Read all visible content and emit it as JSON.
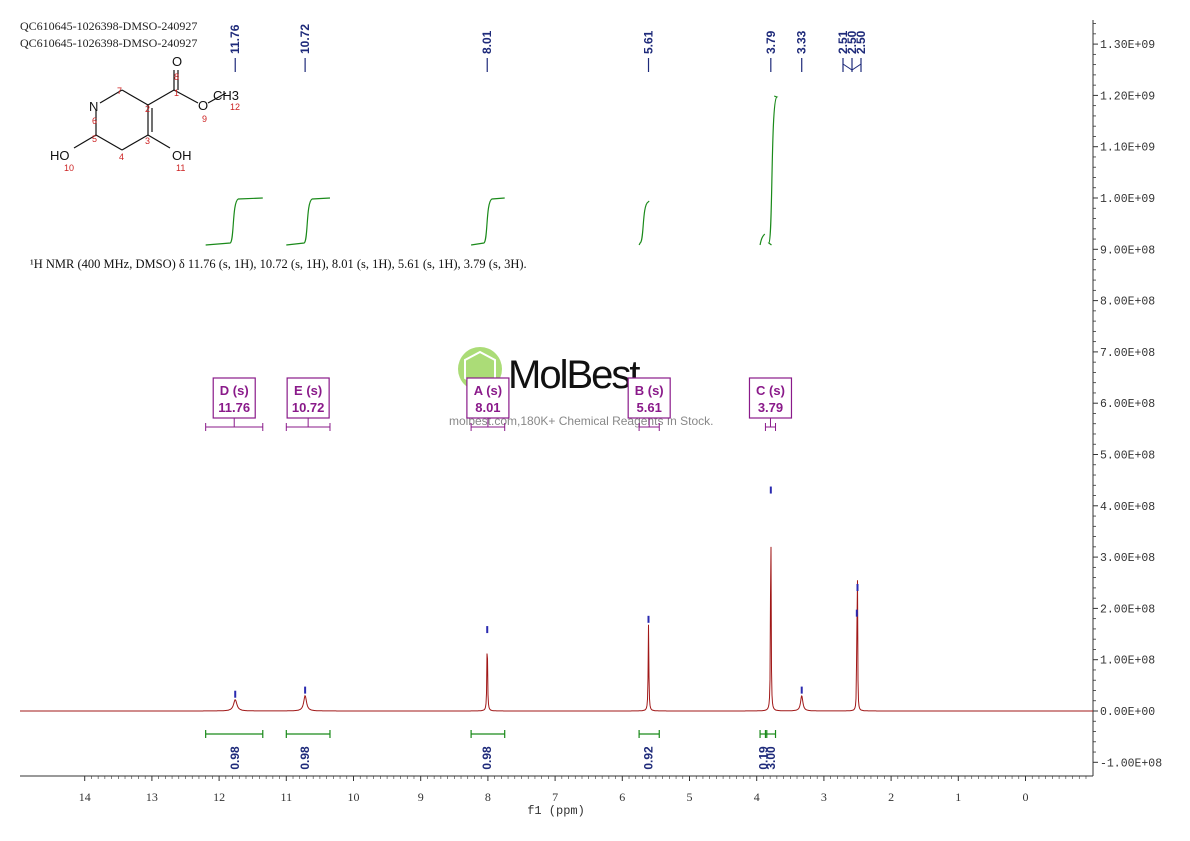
{
  "header": {
    "sample_line1": "QC610645-1026398-DMSO-240927",
    "sample_line2": "QC610645-1026398-DMSO-240927"
  },
  "nmr_description": "¹H NMR (400 MHz, DMSO) δ 11.76 (s, 1H), 10.72 (s, 1H), 8.01 (s, 1H), 5.61 (s, 1H), 3.79 (s, 3H).",
  "watermark": {
    "brand": "MolBest",
    "tagline": "molbest.com,180K+ Chemical Reagents In Stock."
  },
  "molecule": {
    "atoms": [
      "N",
      "O",
      "O",
      "CH3",
      "HO",
      "OH"
    ],
    "numbers": [
      "1",
      "2",
      "3",
      "4",
      "5",
      "6",
      "7",
      "8",
      "9",
      "10",
      "11",
      "12"
    ]
  },
  "colors": {
    "spectrum": "#a01818",
    "integral": "#1a8a1a",
    "peak_label": "#1e2a7a",
    "multiplet": "#8a1a8a"
  },
  "chart_data": {
    "type": "line",
    "xlabel": "f1 (ppm)",
    "x_reversed": true,
    "xlim": [
      15.0,
      -1.0
    ],
    "x_ticks": [
      14,
      13,
      12,
      11,
      10,
      9,
      8,
      7,
      6,
      5,
      4,
      3,
      2,
      1,
      0
    ],
    "ylim": [
      -130000000,
      1350000000
    ],
    "y_ticks": [
      -100000000,
      0,
      100000000,
      200000000,
      300000000,
      400000000,
      500000000,
      600000000,
      700000000,
      800000000,
      900000000,
      1000000000,
      1100000000,
      1200000000,
      1300000000
    ],
    "y_tick_labels": [
      "-1.00E+08",
      "0.00E+00",
      "1.00E+08",
      "2.00E+08",
      "3.00E+08",
      "4.00E+08",
      "5.00E+08",
      "6.00E+08",
      "7.00E+08",
      "8.00E+08",
      "9.00E+08",
      "1.00E+09",
      "1.10E+09",
      "1.20E+09",
      "1.30E+09"
    ],
    "peaks": [
      {
        "ppm": 11.76,
        "height": 22000000,
        "width": 0.03
      },
      {
        "ppm": 10.72,
        "height": 30000000,
        "width": 0.025
      },
      {
        "ppm": 8.01,
        "height": 148000000,
        "width": 0.006
      },
      {
        "ppm": 5.61,
        "height": 168000000,
        "width": 0.006
      },
      {
        "ppm": 3.79,
        "height": 420000000,
        "width": 0.005
      },
      {
        "ppm": 3.33,
        "height": 30000000,
        "width": 0.02
      },
      {
        "ppm": 2.51,
        "height": 180000000,
        "width": 0.004
      },
      {
        "ppm": 2.5,
        "height": 230000000,
        "width": 0.004
      }
    ],
    "peak_labels": [
      "11.76",
      "10.72",
      "8.01",
      "5.61",
      "3.79",
      "3.33",
      "2.51",
      "2.50",
      "2.50"
    ],
    "multiplets": [
      {
        "label": "D (s)",
        "shift": "11.76",
        "from": 12.2,
        "to": 11.35
      },
      {
        "label": "E (s)",
        "shift": "10.72",
        "from": 11.0,
        "to": 10.35
      },
      {
        "label": "A (s)",
        "shift": "8.01",
        "from": 8.25,
        "to": 7.75
      },
      {
        "label": "B (s)",
        "shift": "5.61",
        "from": 5.75,
        "to": 5.45
      },
      {
        "label": "C (s)",
        "shift": "3.79",
        "from": 3.87,
        "to": 3.72
      }
    ],
    "integrals": [
      {
        "value": "0.98",
        "from": 12.2,
        "to": 11.35,
        "center": 11.76
      },
      {
        "value": "0.98",
        "from": 11.0,
        "to": 10.35,
        "center": 10.72
      },
      {
        "value": "0.98",
        "from": 8.25,
        "to": 7.75,
        "center": 8.01
      },
      {
        "value": "0.92",
        "from": 5.75,
        "to": 5.45,
        "center": 5.61
      },
      {
        "value": "0.19",
        "from": 3.95,
        "to": 3.85,
        "center": 3.9
      },
      {
        "value": "3.00",
        "from": 3.87,
        "to": 3.72,
        "center": 3.79
      }
    ]
  }
}
